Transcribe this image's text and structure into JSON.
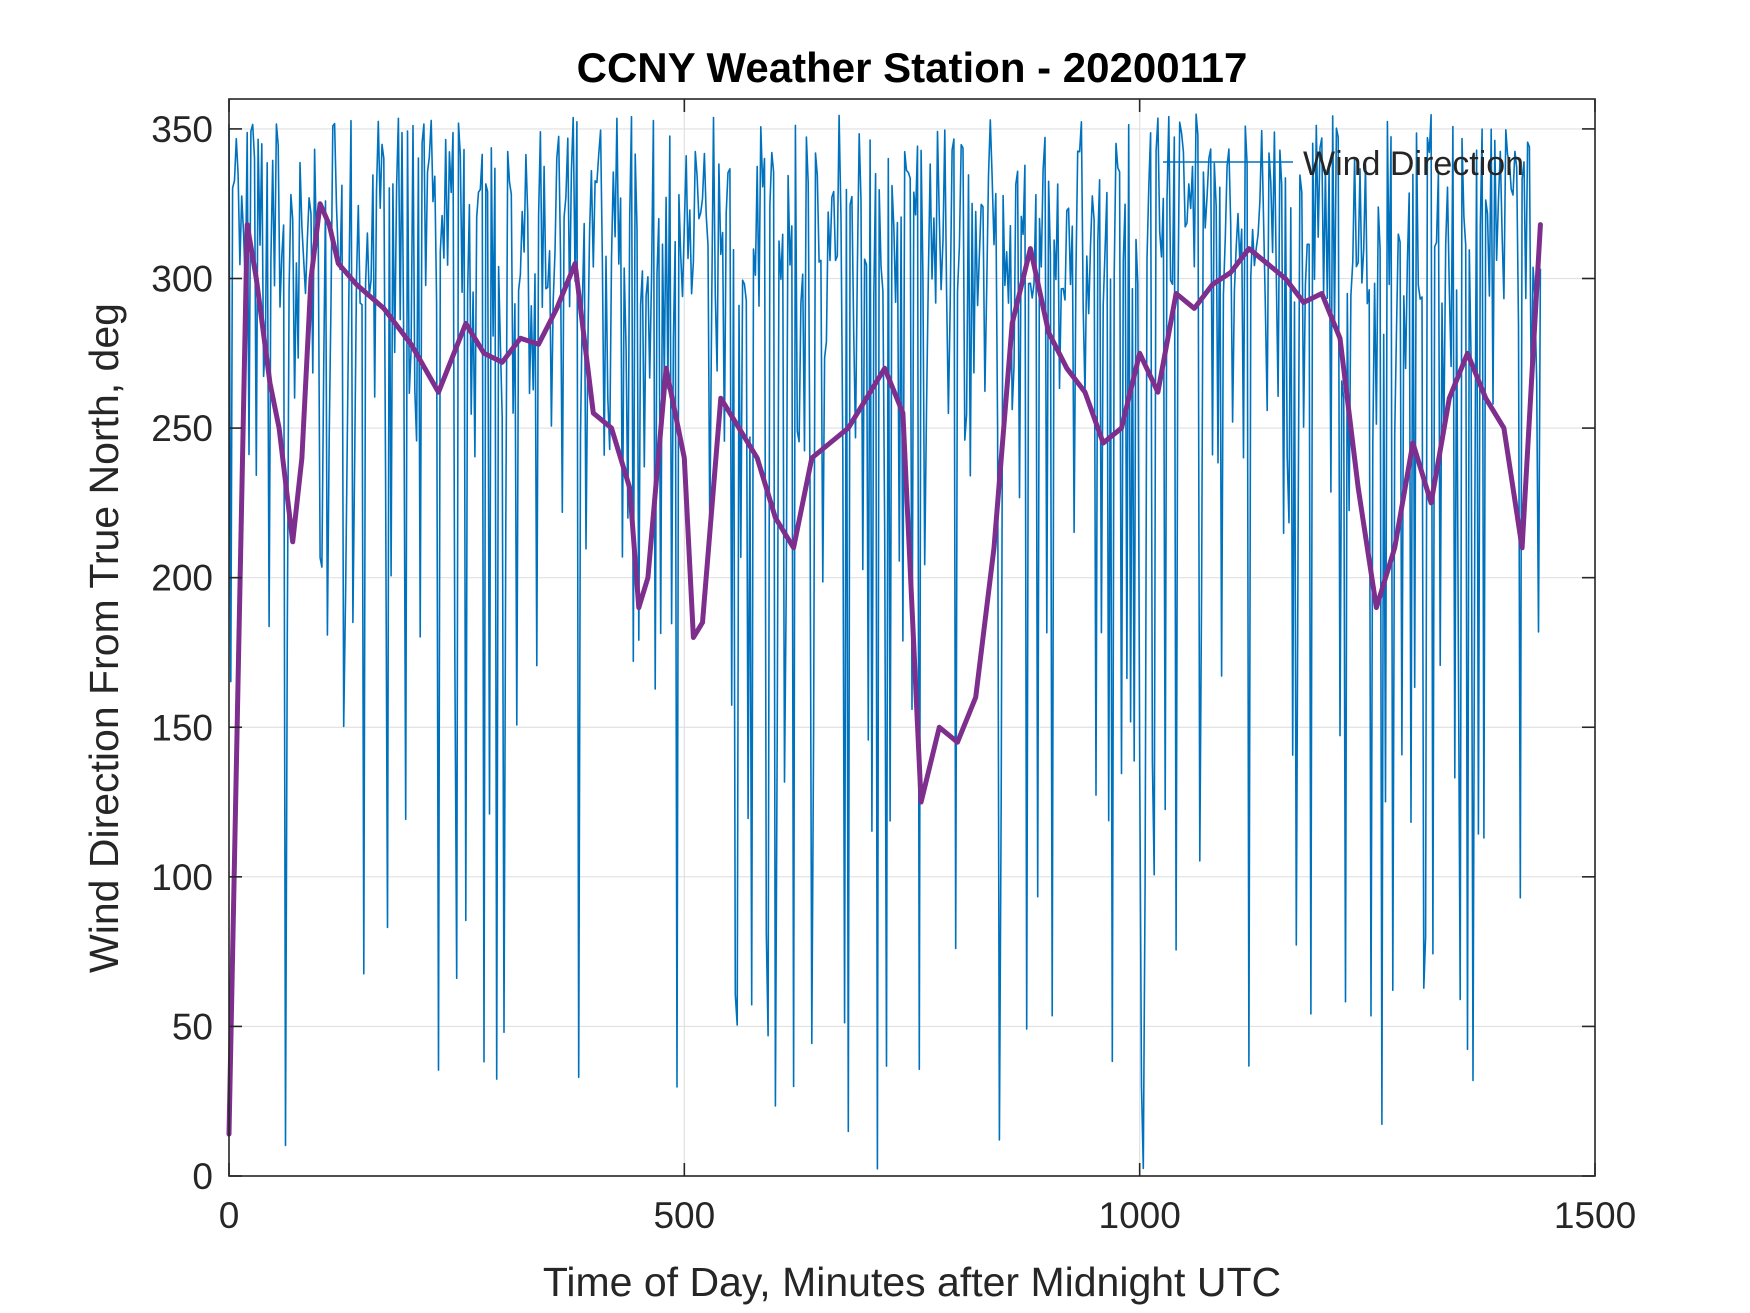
{
  "chart_data": {
    "type": "line",
    "title": "CCNY Weather Station - 20200117",
    "xlabel": "Time of Day, Minutes after Midnight UTC",
    "ylabel": "Wind Direction From True North, deg",
    "xlim": [
      0,
      1500
    ],
    "ylim": [
      0,
      360
    ],
    "xticks": [
      0,
      500,
      1000,
      1500
    ],
    "xtick_labels": [
      "0",
      "500",
      "1000",
      "1500"
    ],
    "yticks": [
      0,
      50,
      100,
      150,
      200,
      250,
      300,
      350
    ],
    "ytick_labels": [
      "0",
      "50",
      "100",
      "150",
      "200",
      "250",
      "300",
      "350"
    ],
    "grid": true,
    "legend": {
      "location": "top-right",
      "entries": [
        "Wind Direction"
      ]
    },
    "series": [
      {
        "name": "Wind Direction",
        "color": "#0072BD",
        "style": "thin line, noisy 1-minute samples (approximate reconstruction)",
        "x_start": 0,
        "x_end": 1440,
        "x_step": 2,
        "typical_range": [
          290,
          350
        ],
        "dips_to_near_zero": true
      },
      {
        "name": "",
        "color": "#7E2F8E",
        "style": "thick line, running mean",
        "x": [
          0,
          20,
          30,
          45,
          55,
          70,
          80,
          90,
          100,
          110,
          120,
          140,
          170,
          200,
          230,
          260,
          280,
          300,
          320,
          340,
          360,
          380,
          400,
          420,
          440,
          450,
          460,
          480,
          500,
          510,
          520,
          540,
          560,
          580,
          600,
          620,
          640,
          660,
          680,
          700,
          720,
          740,
          760,
          780,
          800,
          820,
          840,
          860,
          880,
          900,
          920,
          940,
          960,
          980,
          1000,
          1020,
          1040,
          1060,
          1080,
          1100,
          1120,
          1140,
          1160,
          1180,
          1200,
          1220,
          1240,
          1260,
          1280,
          1300,
          1320,
          1340,
          1360,
          1380,
          1400,
          1420,
          1440
        ],
        "y": [
          14,
          318,
          300,
          265,
          250,
          212,
          240,
          300,
          325,
          318,
          305,
          298,
          290,
          278,
          262,
          285,
          275,
          272,
          280,
          278,
          290,
          305,
          255,
          250,
          230,
          190,
          200,
          270,
          240,
          180,
          185,
          260,
          250,
          240,
          220,
          210,
          240,
          245,
          250,
          260,
          270,
          255,
          125,
          150,
          145,
          160,
          210,
          285,
          310,
          282,
          270,
          262,
          245,
          250,
          275,
          262,
          295,
          290,
          298,
          302,
          310,
          305,
          300,
          292,
          295,
          280,
          230,
          190,
          210,
          245,
          225,
          260,
          275,
          260,
          250,
          210,
          318
        ]
      }
    ]
  }
}
